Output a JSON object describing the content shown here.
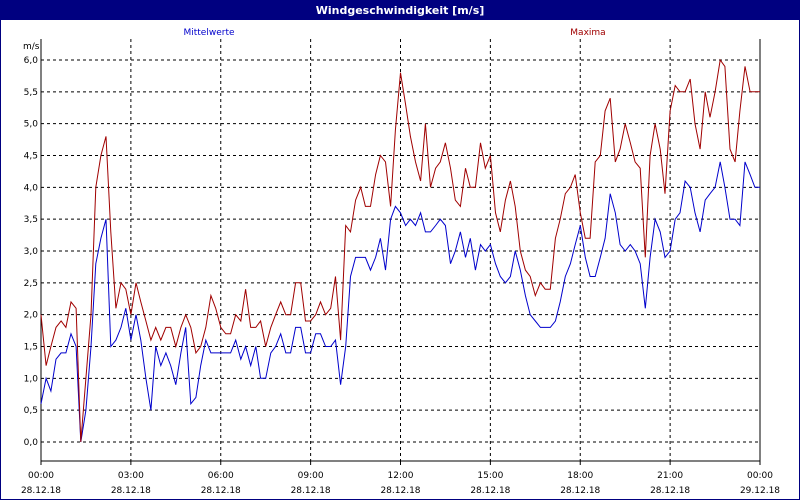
{
  "window": {
    "title": "Windgeschwindigkeit [m/s]"
  },
  "colors": {
    "titlebar": "#000080",
    "mean": "#0000cc",
    "max": "#a00000",
    "grid": "#000000"
  },
  "chart_data": {
    "type": "line",
    "title": "Windgeschwindigkeit [m/s]",
    "ylabel": "m/s",
    "xlabel": "",
    "ylim": [
      0.0,
      6.0
    ],
    "xlim": [
      0,
      24
    ],
    "grid": true,
    "yticks": [
      "0,0",
      "0,5",
      "1,0",
      "1,5",
      "2,0",
      "2,5",
      "3,0",
      "3,5",
      "4,0",
      "4,5",
      "5,0",
      "5,5",
      "6,0"
    ],
    "xticks": [
      {
        "time": "00:00",
        "date": "28.12.18"
      },
      {
        "time": "03:00",
        "date": "28.12.18"
      },
      {
        "time": "06:00",
        "date": "28.12.18"
      },
      {
        "time": "09:00",
        "date": "28.12.18"
      },
      {
        "time": "12:00",
        "date": "28.12.18"
      },
      {
        "time": "15:00",
        "date": "28.12.18"
      },
      {
        "time": "18:00",
        "date": "28.12.18"
      },
      {
        "time": "21:00",
        "date": "28.12.18"
      },
      {
        "time": "00:00",
        "date": "29.12.18"
      }
    ],
    "series": [
      {
        "name": "Mittelwerte",
        "color": "#0000cc",
        "x": [
          0.0,
          0.17,
          0.33,
          0.5,
          0.67,
          0.83,
          1.0,
          1.17,
          1.33,
          1.5,
          1.67,
          1.83,
          2.0,
          2.17,
          2.33,
          2.5,
          2.67,
          2.83,
          3.0,
          3.17,
          3.33,
          3.5,
          3.67,
          3.83,
          4.0,
          4.17,
          4.33,
          4.5,
          4.67,
          4.83,
          5.0,
          5.17,
          5.33,
          5.5,
          5.67,
          5.83,
          6.0,
          6.17,
          6.33,
          6.5,
          6.67,
          6.83,
          7.0,
          7.17,
          7.33,
          7.5,
          7.67,
          7.83,
          8.0,
          8.17,
          8.33,
          8.5,
          8.67,
          8.83,
          9.0,
          9.17,
          9.33,
          9.5,
          9.67,
          9.83,
          10.0,
          10.17,
          10.33,
          10.5,
          10.67,
          10.83,
          11.0,
          11.17,
          11.33,
          11.5,
          11.67,
          11.83,
          12.0,
          12.17,
          12.33,
          12.5,
          12.67,
          12.83,
          13.0,
          13.17,
          13.33,
          13.5,
          13.67,
          13.83,
          14.0,
          14.17,
          14.33,
          14.5,
          14.67,
          14.83,
          15.0,
          15.17,
          15.33,
          15.5,
          15.67,
          15.83,
          16.0,
          16.17,
          16.33,
          16.5,
          16.67,
          16.83,
          17.0,
          17.17,
          17.33,
          17.5,
          17.67,
          17.83,
          18.0,
          18.17,
          18.33,
          18.5,
          18.67,
          18.83,
          19.0,
          19.17,
          19.33,
          19.5,
          19.67,
          19.83,
          20.0,
          20.17,
          20.33,
          20.5,
          20.67,
          20.83,
          21.0,
          21.17,
          21.33,
          21.5,
          21.67,
          21.83,
          22.0,
          22.17,
          22.33,
          22.5,
          22.67,
          22.83,
          23.0,
          23.17,
          23.33,
          23.5,
          23.67,
          23.83,
          24.0
        ],
        "values": [
          0.6,
          1.0,
          0.8,
          1.3,
          1.4,
          1.4,
          1.7,
          1.5,
          0.0,
          0.5,
          1.5,
          2.8,
          3.2,
          3.5,
          1.5,
          1.6,
          1.8,
          2.1,
          1.6,
          2.0,
          1.6,
          1.0,
          0.5,
          1.5,
          1.2,
          1.4,
          1.2,
          0.9,
          1.4,
          1.8,
          0.6,
          0.7,
          1.2,
          1.6,
          1.4,
          1.4,
          1.4,
          1.4,
          1.4,
          1.6,
          1.3,
          1.5,
          1.2,
          1.5,
          1.0,
          1.0,
          1.4,
          1.5,
          1.7,
          1.4,
          1.4,
          1.8,
          1.8,
          1.4,
          1.4,
          1.7,
          1.7,
          1.5,
          1.5,
          1.6,
          0.9,
          1.5,
          2.6,
          2.9,
          2.9,
          2.9,
          2.7,
          2.9,
          3.2,
          2.7,
          3.5,
          3.7,
          3.6,
          3.4,
          3.5,
          3.4,
          3.6,
          3.3,
          3.3,
          3.4,
          3.5,
          3.4,
          2.8,
          3.0,
          3.3,
          2.9,
          3.2,
          2.7,
          3.1,
          3.0,
          3.1,
          2.8,
          2.6,
          2.5,
          2.6,
          3.0,
          2.7,
          2.3,
          2.0,
          1.9,
          1.8,
          1.8,
          1.8,
          1.9,
          2.2,
          2.6,
          2.8,
          3.1,
          3.4,
          2.9,
          2.6,
          2.6,
          2.9,
          3.2,
          3.9,
          3.6,
          3.1,
          3.0,
          3.1,
          3.0,
          2.8,
          2.1,
          2.9,
          3.5,
          3.3,
          2.9,
          3.0,
          3.5,
          3.6,
          4.1,
          4.0,
          3.6,
          3.3,
          3.8,
          3.9,
          4.0,
          4.4,
          4.0,
          3.5,
          3.5,
          3.4,
          4.4,
          4.2,
          4.0,
          4.0
        ]
      },
      {
        "name": "Maxima",
        "color": "#a00000",
        "x": [
          0.0,
          0.17,
          0.33,
          0.5,
          0.67,
          0.83,
          1.0,
          1.17,
          1.33,
          1.5,
          1.67,
          1.83,
          2.0,
          2.17,
          2.33,
          2.5,
          2.67,
          2.83,
          3.0,
          3.17,
          3.33,
          3.5,
          3.67,
          3.83,
          4.0,
          4.17,
          4.33,
          4.5,
          4.67,
          4.83,
          5.0,
          5.17,
          5.33,
          5.5,
          5.67,
          5.83,
          6.0,
          6.17,
          6.33,
          6.5,
          6.67,
          6.83,
          7.0,
          7.17,
          7.33,
          7.5,
          7.67,
          7.83,
          8.0,
          8.17,
          8.33,
          8.5,
          8.67,
          8.83,
          9.0,
          9.17,
          9.33,
          9.5,
          9.67,
          9.83,
          10.0,
          10.17,
          10.33,
          10.5,
          10.67,
          10.83,
          11.0,
          11.17,
          11.33,
          11.5,
          11.67,
          11.83,
          12.0,
          12.17,
          12.33,
          12.5,
          12.67,
          12.83,
          13.0,
          13.17,
          13.33,
          13.5,
          13.67,
          13.83,
          14.0,
          14.17,
          14.33,
          14.5,
          14.67,
          14.83,
          15.0,
          15.17,
          15.33,
          15.5,
          15.67,
          15.83,
          16.0,
          16.17,
          16.33,
          16.5,
          16.67,
          16.83,
          17.0,
          17.17,
          17.33,
          17.5,
          17.67,
          17.83,
          18.0,
          18.17,
          18.33,
          18.5,
          18.67,
          18.83,
          19.0,
          19.17,
          19.33,
          19.5,
          19.67,
          19.83,
          20.0,
          20.17,
          20.33,
          20.5,
          20.67,
          20.83,
          21.0,
          21.17,
          21.33,
          21.5,
          21.67,
          21.83,
          22.0,
          22.17,
          22.33,
          22.5,
          22.67,
          22.83,
          23.0,
          23.17,
          23.33,
          23.5,
          23.67,
          23.83,
          24.0
        ],
        "values": [
          2.0,
          1.2,
          1.5,
          1.8,
          1.9,
          1.8,
          2.2,
          2.1,
          0.0,
          1.0,
          2.0,
          4.0,
          4.5,
          4.8,
          3.3,
          2.1,
          2.5,
          2.4,
          2.0,
          2.5,
          2.2,
          1.9,
          1.6,
          1.8,
          1.6,
          1.8,
          1.8,
          1.5,
          1.8,
          2.0,
          1.8,
          1.4,
          1.5,
          1.8,
          2.3,
          2.1,
          1.8,
          1.7,
          1.7,
          2.0,
          1.9,
          2.4,
          1.8,
          1.8,
          1.9,
          1.5,
          1.8,
          2.0,
          2.2,
          2.0,
          2.0,
          2.5,
          2.5,
          1.9,
          1.9,
          2.0,
          2.2,
          2.0,
          2.1,
          2.6,
          1.6,
          3.4,
          3.3,
          3.8,
          4.0,
          3.7,
          3.7,
          4.2,
          4.5,
          4.4,
          3.7,
          4.9,
          5.8,
          5.3,
          4.8,
          4.4,
          4.1,
          5.0,
          4.0,
          4.3,
          4.4,
          4.7,
          4.3,
          3.8,
          3.7,
          4.3,
          4.0,
          4.0,
          4.7,
          4.3,
          4.5,
          3.6,
          3.3,
          3.8,
          4.1,
          3.7,
          3.0,
          2.7,
          2.6,
          2.3,
          2.5,
          2.4,
          2.4,
          3.2,
          3.5,
          3.9,
          4.0,
          4.2,
          3.6,
          3.2,
          3.2,
          4.4,
          4.5,
          5.2,
          5.4,
          4.4,
          4.6,
          5.0,
          4.7,
          4.4,
          4.3,
          2.9,
          4.5,
          5.0,
          4.6,
          3.9,
          5.2,
          5.6,
          5.5,
          5.5,
          5.7,
          5.0,
          4.6,
          5.5,
          5.1,
          5.5,
          6.0,
          5.9,
          4.6,
          4.4,
          5.2,
          5.9,
          5.5,
          5.5,
          5.5
        ]
      }
    ]
  }
}
